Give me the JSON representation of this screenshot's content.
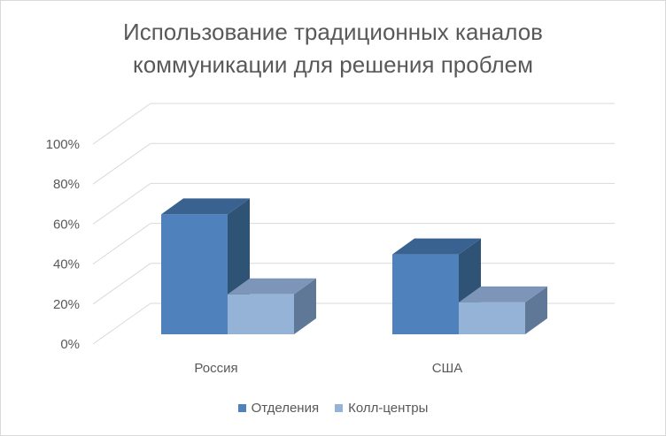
{
  "chart_data": {
    "type": "bar",
    "title_lines": [
      "Использование традиционных каналов",
      "коммуникации для решения проблем"
    ],
    "categories": [
      "Россия",
      "США"
    ],
    "series": [
      {
        "name": "Отделения",
        "values": [
          0.6,
          0.4
        ],
        "color": "#4f81bd",
        "top_color": "#3a6291",
        "side_color": "#2f5375"
      },
      {
        "name": "Колл-центры",
        "values": [
          0.2,
          0.16
        ],
        "color": "#95b3d7",
        "top_color": "#7c95b8",
        "side_color": "#5f7898"
      }
    ],
    "ylim": [
      0,
      1
    ],
    "yticks": [
      "0%",
      "20%",
      "40%",
      "60%",
      "80%",
      "100%"
    ],
    "grid": true,
    "legend_position": "bottom",
    "projection": "3d-clustered-column"
  }
}
